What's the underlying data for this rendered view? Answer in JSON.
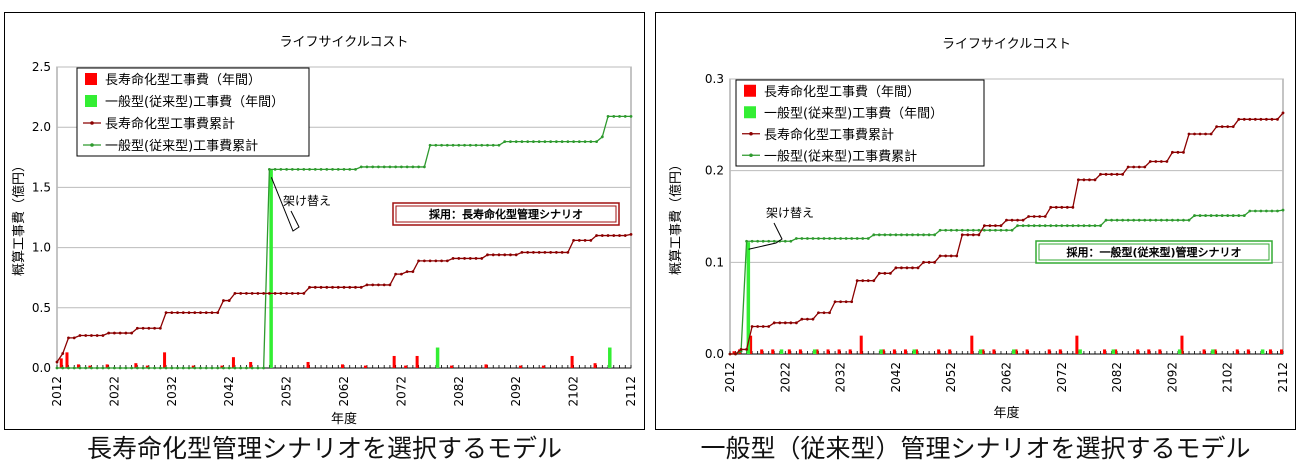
{
  "charts": [
    {
      "caption": "長寿命化型管理シナリオを選択するモデル",
      "chart_data": {
        "type": "bar+line",
        "title": "ライフサイクルコスト",
        "xlabel": "年度",
        "ylabel": "概算工事費（億円）",
        "xlim": [
          2012,
          2112
        ],
        "ylim": [
          0,
          2.5
        ],
        "yticks": [
          "0.0",
          "0.5",
          "1.0",
          "1.5",
          "2.0",
          "2.5"
        ],
        "xticks": [
          "2012",
          "2022",
          "2032",
          "2042",
          "2052",
          "2062",
          "2072",
          "2082",
          "2092",
          "2102",
          "2112"
        ],
        "grid": true,
        "legend_position": "top-left",
        "legend": [
          "長寿命化型工事費（年間）",
          "一般型(従来型)工事費（年間）",
          "長寿命化型工事費累計",
          "一般型(従来型)工事費累計"
        ],
        "series_colors": [
          "#ff0000",
          "#33ee33",
          "#8b0000",
          "#2e9a2e"
        ],
        "annotation": "架け替え",
        "annotation_x": 2049,
        "scenario_label": "採用：長寿命化型管理シナリオ",
        "scenario_color": "#a01010",
        "bars_long": [
          [
            2013,
            0.08
          ],
          [
            2014,
            0.13
          ],
          [
            2016,
            0.03
          ],
          [
            2018,
            0.02
          ],
          [
            2021,
            0.03
          ],
          [
            2026,
            0.04
          ],
          [
            2028,
            0.02
          ],
          [
            2031,
            0.13
          ],
          [
            2036,
            0.02
          ],
          [
            2041,
            0.02
          ],
          [
            2043,
            0.09
          ],
          [
            2046,
            0.05
          ],
          [
            2056,
            0.05
          ],
          [
            2062,
            0.03
          ],
          [
            2066,
            0.02
          ],
          [
            2071,
            0.1
          ],
          [
            2073,
            0.02
          ],
          [
            2075,
            0.1
          ],
          [
            2081,
            0.02
          ],
          [
            2087,
            0.03
          ],
          [
            2093,
            0.02
          ],
          [
            2097,
            0.02
          ],
          [
            2102,
            0.1
          ],
          [
            2106,
            0.04
          ]
        ],
        "bars_conv": [
          [
            2049,
            1.65
          ],
          [
            2078,
            0.17
          ],
          [
            2108,
            0.17
          ]
        ],
        "cum_long": [
          [
            2012,
            0.05
          ],
          [
            2013,
            0.12
          ],
          [
            2014,
            0.25
          ],
          [
            2016,
            0.27
          ],
          [
            2021,
            0.29
          ],
          [
            2026,
            0.33
          ],
          [
            2031,
            0.46
          ],
          [
            2041,
            0.56
          ],
          [
            2043,
            0.62
          ],
          [
            2056,
            0.67
          ],
          [
            2066,
            0.69
          ],
          [
            2071,
            0.78
          ],
          [
            2073,
            0.8
          ],
          [
            2075,
            0.89
          ],
          [
            2081,
            0.91
          ],
          [
            2087,
            0.94
          ],
          [
            2093,
            0.96
          ],
          [
            2102,
            1.06
          ],
          [
            2106,
            1.1
          ],
          [
            2112,
            1.11
          ]
        ],
        "cum_conv": [
          [
            2012,
            0.0
          ],
          [
            2048,
            0.0
          ],
          [
            2049,
            1.65
          ],
          [
            2065,
            1.67
          ],
          [
            2077,
            1.85
          ],
          [
            2090,
            1.88
          ],
          [
            2107,
            1.92
          ],
          [
            2108,
            2.09
          ],
          [
            2112,
            2.09
          ]
        ]
      }
    },
    {
      "caption": "一般型（従来型）管理シナリオを選択するモデル",
      "chart_data": {
        "type": "bar+line",
        "title": "ライフサイクルコスト",
        "xlabel": "年度",
        "ylabel": "概算工事費（億円）",
        "xlim": [
          2012,
          2112
        ],
        "ylim": [
          0,
          0.3
        ],
        "yticks": [
          "0.0",
          "0.1",
          "0.2",
          "0.3"
        ],
        "xticks": [
          "2012",
          "2022",
          "2032",
          "2042",
          "2052",
          "2062",
          "2072",
          "2082",
          "2092",
          "2102",
          "2112"
        ],
        "grid": true,
        "legend_position": "top-left",
        "legend": [
          "長寿命化型工事費（年間）",
          "一般型(従来型)工事費（年間）",
          "長寿命化型工事費累計",
          "一般型(従来型)工事費累計"
        ],
        "series_colors": [
          "#ff0000",
          "#33ee33",
          "#8b0000",
          "#2e9a2e"
        ],
        "annotation": "架け替え",
        "annotation_x": 2015,
        "scenario_label": "採用：一般型(従来型)管理シナリオ",
        "scenario_color": "#33aa33",
        "bars_long": [
          [
            2013,
            0.003
          ],
          [
            2014,
            0.005
          ],
          [
            2016,
            0.02
          ],
          [
            2018,
            0.005
          ],
          [
            2020,
            0.005
          ],
          [
            2023,
            0.005
          ],
          [
            2025,
            0.005
          ],
          [
            2028,
            0.005
          ],
          [
            2030,
            0.005
          ],
          [
            2032,
            0.005
          ],
          [
            2034,
            0.005
          ],
          [
            2036,
            0.02
          ],
          [
            2040,
            0.005
          ],
          [
            2042,
            0.005
          ],
          [
            2044,
            0.005
          ],
          [
            2046,
            0.005
          ],
          [
            2050,
            0.005
          ],
          [
            2052,
            0.005
          ],
          [
            2056,
            0.02
          ],
          [
            2058,
            0.005
          ],
          [
            2060,
            0.005
          ],
          [
            2064,
            0.005
          ],
          [
            2066,
            0.005
          ],
          [
            2070,
            0.005
          ],
          [
            2072,
            0.005
          ],
          [
            2075,
            0.02
          ],
          [
            2080,
            0.005
          ],
          [
            2082,
            0.005
          ],
          [
            2086,
            0.005
          ],
          [
            2088,
            0.005
          ],
          [
            2090,
            0.005
          ],
          [
            2094,
            0.02
          ],
          [
            2098,
            0.005
          ],
          [
            2100,
            0.005
          ],
          [
            2104,
            0.005
          ],
          [
            2106,
            0.005
          ],
          [
            2110,
            0.005
          ],
          [
            2112,
            0.005
          ]
        ],
        "bars_conv": [
          [
            2015,
            0.122
          ],
          [
            2021,
            0.005
          ],
          [
            2027,
            0.005
          ],
          [
            2039,
            0.005
          ],
          [
            2045,
            0.005
          ],
          [
            2057,
            0.005
          ],
          [
            2063,
            0.005
          ],
          [
            2075,
            0.005
          ],
          [
            2081,
            0.005
          ],
          [
            2093,
            0.005
          ],
          [
            2099,
            0.005
          ],
          [
            2108,
            0.005
          ]
        ],
        "cum_long": [
          [
            2012,
            0.0
          ],
          [
            2014,
            0.005
          ],
          [
            2016,
            0.03
          ],
          [
            2020,
            0.034
          ],
          [
            2025,
            0.038
          ],
          [
            2028,
            0.045
          ],
          [
            2031,
            0.057
          ],
          [
            2035,
            0.08
          ],
          [
            2039,
            0.088
          ],
          [
            2042,
            0.094
          ],
          [
            2047,
            0.1
          ],
          [
            2050,
            0.107
          ],
          [
            2054,
            0.13
          ],
          [
            2058,
            0.14
          ],
          [
            2062,
            0.146
          ],
          [
            2066,
            0.15
          ],
          [
            2070,
            0.16
          ],
          [
            2075,
            0.19
          ],
          [
            2079,
            0.196
          ],
          [
            2084,
            0.204
          ],
          [
            2088,
            0.21
          ],
          [
            2092,
            0.22
          ],
          [
            2095,
            0.24
          ],
          [
            2100,
            0.248
          ],
          [
            2104,
            0.256
          ],
          [
            2112,
            0.263
          ]
        ],
        "cum_conv": [
          [
            2012,
            0.0
          ],
          [
            2014,
            0.003
          ],
          [
            2015,
            0.123
          ],
          [
            2024,
            0.126
          ],
          [
            2038,
            0.13
          ],
          [
            2050,
            0.135
          ],
          [
            2064,
            0.14
          ],
          [
            2080,
            0.146
          ],
          [
            2096,
            0.151
          ],
          [
            2106,
            0.156
          ],
          [
            2112,
            0.157
          ]
        ]
      }
    }
  ]
}
